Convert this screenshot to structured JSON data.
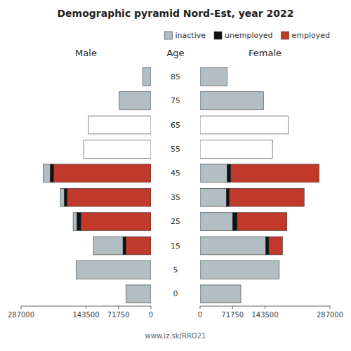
{
  "chart_data": [
    {
      "type": "bar",
      "orientation": "horizontal",
      "stacked": true,
      "title": "Demographic pyramid Nord-Est, year 2022",
      "subtitle": "Male",
      "ylabel": "Age",
      "annotations": [
        "www.iz.sk/RRO21"
      ],
      "categories": [
        "0",
        "5",
        "15",
        "25",
        "35",
        "45",
        "55",
        "65",
        "75",
        "85"
      ],
      "xlim": [
        287000,
        0
      ],
      "xticks": [
        0,
        71750,
        143500,
        287000
      ],
      "series": [
        {
          "name": "employed",
          "color": "#c0392b",
          "values": [
            0,
            0,
            55000,
            155000,
            185000,
            215000,
            0,
            0,
            0,
            0
          ]
        },
        {
          "name": "unemployed",
          "color": "#111111",
          "values": [
            0,
            0,
            7000,
            9000,
            7000,
            8000,
            0,
            0,
            0,
            0
          ]
        },
        {
          "name": "inactive",
          "color": "#b2bec3",
          "colors": [
            "#b2bec3",
            "#b2bec3",
            "#b2bec3",
            "#b2bec3",
            "#b2bec3",
            "#b2bec3",
            "#ffffff",
            "#ffffff",
            "#b2bec3",
            "#b2bec3"
          ],
          "values": [
            55000,
            165000,
            65000,
            8000,
            8000,
            15000,
            148000,
            138000,
            70000,
            18000
          ]
        }
      ]
    },
    {
      "type": "bar",
      "orientation": "horizontal",
      "stacked": true,
      "subtitle": "Female",
      "legend": "upper right",
      "categories": [
        "0",
        "5",
        "15",
        "25",
        "35",
        "45",
        "55",
        "65",
        "75",
        "85"
      ],
      "xlim": [
        0,
        287000
      ],
      "xticks": [
        0,
        71750,
        143500,
        287000
      ],
      "series": [
        {
          "name": "inactive",
          "color": "#b2bec3",
          "colors": [
            "#b2bec3",
            "#b2bec3",
            "#b2bec3",
            "#b2bec3",
            "#b2bec3",
            "#b2bec3",
            "#ffffff",
            "#ffffff",
            "#b2bec3",
            "#b2bec3"
          ],
          "values": [
            90000,
            175000,
            145000,
            72000,
            58000,
            60000,
            160000,
            195000,
            140000,
            60000
          ]
        },
        {
          "name": "unemployed",
          "color": "#111111",
          "values": [
            0,
            0,
            7000,
            10000,
            7000,
            8000,
            0,
            0,
            0,
            0
          ]
        },
        {
          "name": "employed",
          "color": "#c0392b",
          "values": [
            0,
            0,
            30000,
            110000,
            165000,
            195000,
            0,
            0,
            0,
            0
          ]
        }
      ]
    }
  ]
}
